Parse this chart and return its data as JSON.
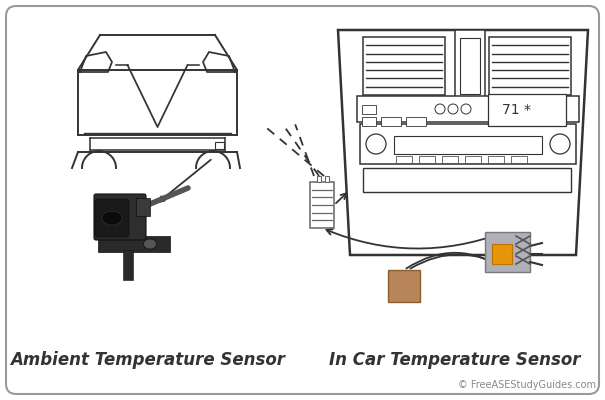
{
  "label_left": "Ambient Temperature Sensor",
  "label_right": "In Car Temperature Sensor",
  "copyright": "© FreeASEStudyGuides.com",
  "bg_color": "#ffffff",
  "border_color": "#aaaaaa",
  "line_color": "#333333",
  "sensor_dark": "#2a2a2a",
  "sensor_mid": "#444444",
  "orange_color": "#e8950a",
  "tan_color": "#b8845a",
  "gray_sensor": "#a0a0a8",
  "label_fontsize": 12,
  "copyright_fontsize": 7
}
